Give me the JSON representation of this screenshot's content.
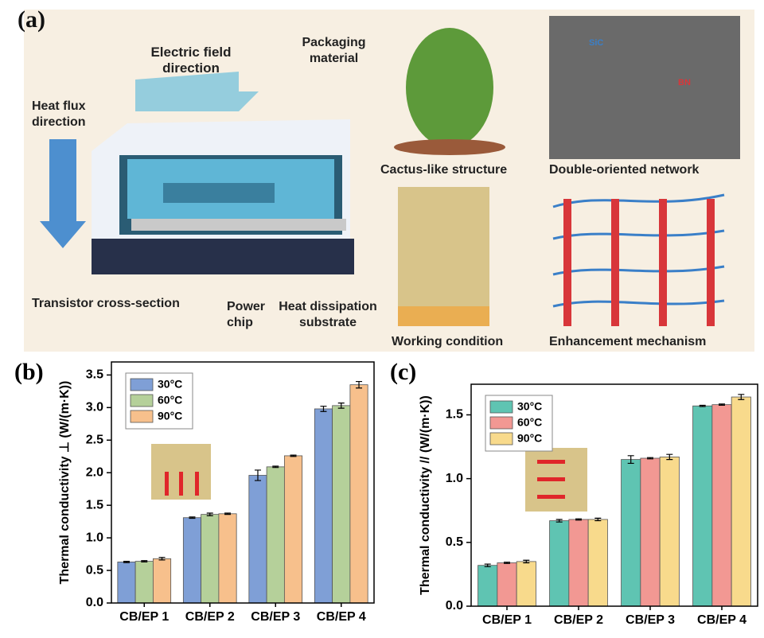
{
  "panel_a": {
    "label": "(a)",
    "electric_field": "Electric field direction",
    "packaging": "Packaging material",
    "heat_flux": "Heat flux direction",
    "transistor": "Transistor cross-section",
    "power_chip": "Power chip",
    "substrate": "Heat dissipation substrate",
    "cactus": "Cactus-like structure",
    "network": "Double-oriented network",
    "sic": "SiC",
    "bn": "BN",
    "working": "Working condition",
    "mechanism": "Enhancement mechanism"
  },
  "chart_data": [
    {
      "type": "bar",
      "panel_label": "(b)",
      "ylabel": "Thermal conductivity ⊥ (W/(m·K))",
      "categories": [
        "CB/EP 1",
        "CB/EP 2",
        "CB/EP 3",
        "CB/EP 4"
      ],
      "series": [
        {
          "name": "30°C",
          "color": "#7f9fd6",
          "values": [
            0.63,
            1.31,
            1.96,
            2.98
          ],
          "errors": [
            0.01,
            0.01,
            0.08,
            0.04
          ]
        },
        {
          "name": "60°C",
          "color": "#b5d09a",
          "values": [
            0.64,
            1.36,
            2.09,
            3.03
          ],
          "errors": [
            0.01,
            0.02,
            0.01,
            0.04
          ]
        },
        {
          "name": "90°C",
          "color": "#f7c08c",
          "values": [
            0.68,
            1.37,
            2.26,
            3.35
          ],
          "errors": [
            0.02,
            0.01,
            0.01,
            0.05
          ]
        }
      ],
      "ylim": [
        0,
        3.7
      ],
      "yticks": [
        {
          "value": 0,
          "label": "0.0"
        },
        0.5,
        {
          "value": 1,
          "label": "1.0"
        },
        1.5,
        {
          "value": 2,
          "label": "2.0"
        },
        2.5,
        {
          "value": 3,
          "label": "3.0"
        },
        3.5
      ],
      "legend": "upper left"
    },
    {
      "type": "bar",
      "panel_label": "(c)",
      "ylabel": "Thermal conductivity // (W/(m·K))",
      "categories": [
        "CB/EP 1",
        "CB/EP 2",
        "CB/EP 3",
        "CB/EP 4"
      ],
      "series": [
        {
          "name": "30°C",
          "color": "#5fc4b2",
          "values": [
            0.32,
            0.67,
            1.15,
            1.57
          ],
          "errors": [
            0.01,
            0.01,
            0.03,
            0.005
          ]
        },
        {
          "name": "60°C",
          "color": "#f29893",
          "values": [
            0.34,
            0.68,
            1.16,
            1.58
          ],
          "errors": [
            0.005,
            0.005,
            0.005,
            0.005
          ]
        },
        {
          "name": "90°C",
          "color": "#f8da8c",
          "values": [
            0.35,
            0.68,
            1.17,
            1.64
          ],
          "errors": [
            0.01,
            0.01,
            0.02,
            0.02
          ]
        }
      ],
      "ylim": [
        0,
        1.74
      ],
      "yticks": [
        {
          "value": 0,
          "label": "0.0"
        },
        0.5,
        {
          "value": 1,
          "label": "1.0"
        },
        1.5
      ],
      "legend": "upper left"
    }
  ]
}
